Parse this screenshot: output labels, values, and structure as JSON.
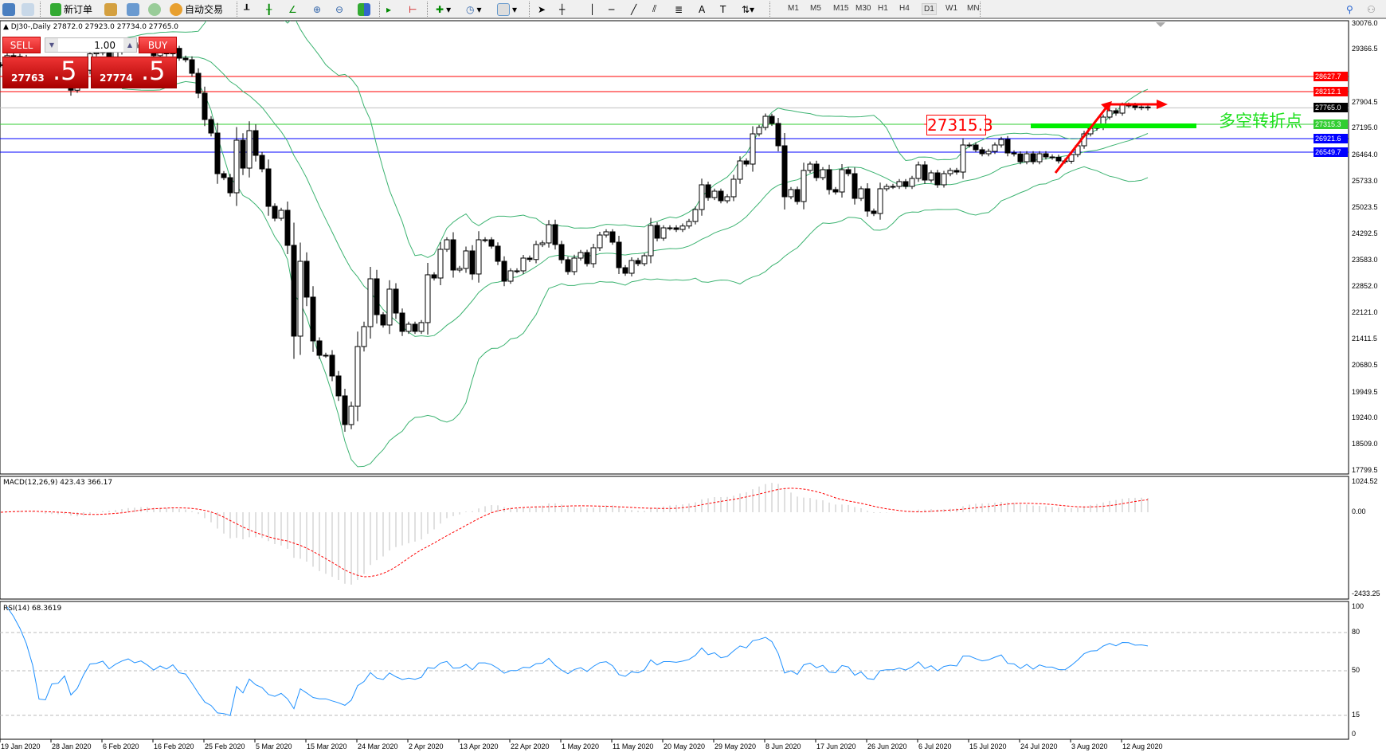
{
  "toolbar": {
    "new_order": "新订单",
    "auto_trading": "自动交易",
    "timeframes": [
      "M1",
      "M5",
      "M15",
      "M30",
      "H1",
      "H4",
      "D1",
      "W1",
      "MN"
    ],
    "selected_timeframe": "D1",
    "line_tool_labels": [
      "A"
    ]
  },
  "chart_header": {
    "text": "DJ30-,Daily  27872.0 27923.0 27734.0 27765.0"
  },
  "trade_panel": {
    "sell_label": "SELL",
    "buy_label": "BUY",
    "volume": "1.00",
    "sell_price_small": "27763",
    "sell_price_big": ".5",
    "buy_price_small": "27774",
    "buy_price_big": ".5"
  },
  "price_axis": {
    "ticks": [
      "30076.0",
      "29366.5",
      "27904.5",
      "27195.0",
      "26464.0",
      "25733.0",
      "25023.5",
      "24292.5",
      "23583.0",
      "22852.0",
      "22121.0",
      "21411.5",
      "20680.5",
      "19949.5",
      "19240.0",
      "18509.0",
      "17799.5"
    ]
  },
  "levels": [
    {
      "value": 28627.7,
      "label": "28627.7",
      "color": "#ff0000"
    },
    {
      "value": 28212.1,
      "label": "28212.1",
      "color": "#ff0000"
    },
    {
      "value": 27765.0,
      "label": "27765.0",
      "color": "#000000",
      "line_color": "#c0c0c0"
    },
    {
      "value": 27315.3,
      "label": "27315.3",
      "color": "#32cd32"
    },
    {
      "value": 26921.6,
      "label": "26921.6",
      "color": "#0000ff"
    },
    {
      "value": 26549.7,
      "label": "26549.7",
      "color": "#0000ff"
    }
  ],
  "annotations": {
    "price_box": "27315.3",
    "text": "多空转折点",
    "text_color": "#1ee01e",
    "arrow_color": "#ff0000"
  },
  "macd": {
    "title": "MACD(12,26,9) 423.43 366.17",
    "max_label": "1024.52",
    "zero_label": "0.00",
    "min_label": "-2433.25"
  },
  "rsi": {
    "title": "RSI(14) 68.3619",
    "levels": [
      "100",
      "80",
      "50",
      "15",
      "0"
    ]
  },
  "date_axis": [
    "19 Jan 2020",
    "28 Jan 2020",
    "6 Feb 2020",
    "16 Feb 2020",
    "25 Feb 2020",
    "5 Mar 2020",
    "15 Mar 2020",
    "24 Mar 2020",
    "2 Apr 2020",
    "13 Apr 2020",
    "22 Apr 2020",
    "1 May 2020",
    "11 May 2020",
    "20 May 2020",
    "29 May 2020",
    "8 Jun 2020",
    "17 Jun 2020",
    "26 Jun 2020",
    "6 Jul 2020",
    "15 Jul 2020",
    "24 Jul 2020",
    "3 Aug 2020",
    "12 Aug 2020"
  ],
  "chart_data": {
    "type": "candlestick",
    "symbol": "DJ30-",
    "period": "Daily",
    "ylim": [
      17799.5,
      30076.0
    ],
    "close": [
      28950,
      29200,
      29180,
      29150,
      29100,
      28990,
      28550,
      28530,
      28720,
      28730,
      28850,
      28250,
      28400,
      28800,
      29250,
      29280,
      29380,
      29100,
      29300,
      29450,
      29550,
      29420,
      29500,
      29370,
      29200,
      29350,
      29250,
      29400,
      29131,
      29087,
      28715,
      28168,
      27446,
      27074,
      25958,
      25849,
      25433,
      26877,
      26111,
      27140,
      26461,
      26089,
      25061,
      24733,
      24952,
      23989,
      21495,
      23551,
      22567,
      21364,
      20970,
      20970,
      20401,
      19854,
      19066,
      19569,
      21210,
      21757,
      23070,
      22085,
      21801,
      22786,
      22129,
      21626,
      21823,
      21626,
      21867,
      23180,
      23092,
      23880,
      24142,
      23311,
      23355,
      23836,
      23202,
      24142,
      24142,
      23967,
      23551,
      23004,
      23289,
      23289,
      23639,
      23600,
      24011,
      24055,
      24558,
      24011,
      23595,
      23267,
      23639,
      23792,
      23486,
      23923,
      24273,
      24361,
      24076,
      23376,
      23223,
      23573,
      23486,
      23704,
      24536,
      24186,
      24470,
      24470,
      24426,
      24520,
      24645,
      24973,
      25652,
      25302,
      25477,
      25214,
      25324,
      25805,
      26308,
      26221,
      27052,
      27228,
      27534,
      27337,
      26724,
      25324,
      25521,
      25193,
      26046,
      26221,
      25849,
      26068,
      25521,
      25455,
      26068,
      25958,
      25280,
      25543,
      24930,
      24864,
      25543,
      25608,
      25608,
      25740,
      25608,
      25827,
      26199,
      25783,
      25980,
      25652,
      25958,
      26046,
      26002,
      26746,
      26746,
      26615,
      26505,
      26571,
      26746,
      26899,
      26527,
      26500,
      26286,
      26505,
      26286,
      26505,
      26418,
      26410,
      26308,
      26300,
      26483,
      26724,
      27052,
      27206,
      27228,
      27512,
      27687,
      27621,
      27840,
      27835,
      27774,
      27790,
      27765
    ],
    "indicators": [
      "Bollinger Bands(20,2)",
      "MACD(12,26,9)",
      "RSI(14)"
    ],
    "colors": {
      "bull": "#ffffff",
      "bear": "#000000",
      "bands": "#3cb371",
      "macd_hist": "#c0c0c0",
      "macd_signal": "#ff0000",
      "rsi": "#1e90ff"
    }
  }
}
